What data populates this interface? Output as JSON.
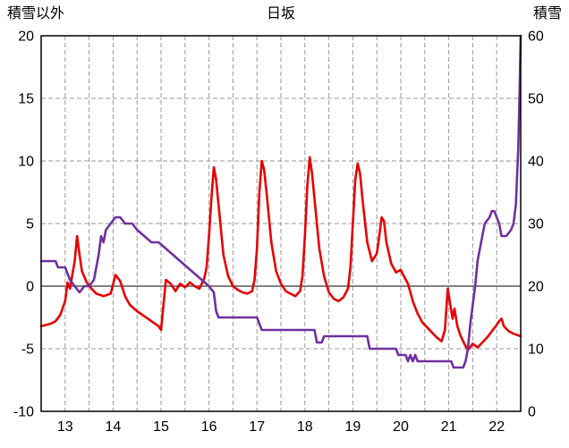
{
  "header": {
    "left_axis_title": "積雪以外",
    "chart_title": "日坂",
    "right_axis_title": "積雪"
  },
  "colors": {
    "red_series": "#e60000",
    "purple_series": "#7030a0",
    "gridline": "#999999",
    "zero_line": "#808080",
    "border": "#000000",
    "text": "#000000",
    "background": "#ffffff"
  },
  "chart_data": {
    "type": "line",
    "title": "日坂",
    "grid": true,
    "legend": "none",
    "left_axis": {
      "label": "積雪以外",
      "min": -10,
      "max": 20,
      "ticks": [
        -10,
        -5,
        0,
        5,
        10,
        15,
        20
      ]
    },
    "right_axis": {
      "label": "積雪",
      "min": 0,
      "max": 60,
      "ticks": [
        0,
        10,
        20,
        30,
        40,
        50,
        60
      ]
    },
    "x_axis": {
      "min": 12.5,
      "max": 22.5,
      "ticks": [
        13,
        14,
        15,
        16,
        17,
        18,
        19,
        20,
        21,
        22
      ],
      "grid_step": 0.5
    },
    "series": [
      {
        "id": "red",
        "name": "積雪以外",
        "axis": "left",
        "color": "#e60000",
        "points": [
          [
            12.5,
            -3.2
          ],
          [
            12.6,
            -3.1
          ],
          [
            12.7,
            -3.0
          ],
          [
            12.8,
            -2.8
          ],
          [
            12.9,
            -2.3
          ],
          [
            13.0,
            -1.2
          ],
          [
            13.05,
            0.3
          ],
          [
            13.1,
            -0.2
          ],
          [
            13.2,
            2.0
          ],
          [
            13.25,
            4.0
          ],
          [
            13.3,
            2.5
          ],
          [
            13.35,
            1.2
          ],
          [
            13.45,
            0.3
          ],
          [
            13.55,
            -0.2
          ],
          [
            13.65,
            -0.6
          ],
          [
            13.8,
            -0.8
          ],
          [
            13.95,
            -0.6
          ],
          [
            14.05,
            0.9
          ],
          [
            14.15,
            0.4
          ],
          [
            14.25,
            -0.8
          ],
          [
            14.35,
            -1.5
          ],
          [
            14.5,
            -2.0
          ],
          [
            14.65,
            -2.4
          ],
          [
            14.8,
            -2.8
          ],
          [
            14.95,
            -3.2
          ],
          [
            15.0,
            -3.5
          ],
          [
            15.05,
            -1.5
          ],
          [
            15.1,
            0.5
          ],
          [
            15.2,
            0.2
          ],
          [
            15.3,
            -0.4
          ],
          [
            15.4,
            0.2
          ],
          [
            15.5,
            -0.1
          ],
          [
            15.6,
            0.3
          ],
          [
            15.7,
            0.0
          ],
          [
            15.8,
            -0.2
          ],
          [
            15.9,
            0.6
          ],
          [
            15.95,
            1.5
          ],
          [
            16.0,
            4.0
          ],
          [
            16.05,
            7.0
          ],
          [
            16.1,
            9.5
          ],
          [
            16.15,
            8.5
          ],
          [
            16.2,
            6.5
          ],
          [
            16.3,
            2.5
          ],
          [
            16.4,
            0.8
          ],
          [
            16.5,
            0.0
          ],
          [
            16.6,
            -0.3
          ],
          [
            16.7,
            -0.5
          ],
          [
            16.8,
            -0.6
          ],
          [
            16.9,
            -0.4
          ],
          [
            16.95,
            0.5
          ],
          [
            17.0,
            3.0
          ],
          [
            17.05,
            7.5
          ],
          [
            17.1,
            10.0
          ],
          [
            17.15,
            9.3
          ],
          [
            17.2,
            7.5
          ],
          [
            17.3,
            3.5
          ],
          [
            17.4,
            1.2
          ],
          [
            17.5,
            0.2
          ],
          [
            17.6,
            -0.4
          ],
          [
            17.7,
            -0.6
          ],
          [
            17.8,
            -0.8
          ],
          [
            17.9,
            -0.4
          ],
          [
            17.95,
            0.8
          ],
          [
            18.0,
            4.0
          ],
          [
            18.05,
            8.0
          ],
          [
            18.1,
            10.3
          ],
          [
            18.15,
            9.0
          ],
          [
            18.2,
            7.0
          ],
          [
            18.3,
            3.0
          ],
          [
            18.4,
            0.8
          ],
          [
            18.5,
            -0.5
          ],
          [
            18.6,
            -1.0
          ],
          [
            18.7,
            -1.2
          ],
          [
            18.8,
            -0.9
          ],
          [
            18.9,
            -0.2
          ],
          [
            18.95,
            1.5
          ],
          [
            19.0,
            5.0
          ],
          [
            19.05,
            8.5
          ],
          [
            19.1,
            9.8
          ],
          [
            19.15,
            9.0
          ],
          [
            19.2,
            7.0
          ],
          [
            19.3,
            3.5
          ],
          [
            19.4,
            2.0
          ],
          [
            19.5,
            2.6
          ],
          [
            19.55,
            4.0
          ],
          [
            19.6,
            5.5
          ],
          [
            19.65,
            5.2
          ],
          [
            19.7,
            3.5
          ],
          [
            19.8,
            1.8
          ],
          [
            19.9,
            1.1
          ],
          [
            20.0,
            1.3
          ],
          [
            20.05,
            0.9
          ],
          [
            20.15,
            0.2
          ],
          [
            20.25,
            -1.2
          ],
          [
            20.35,
            -2.2
          ],
          [
            20.45,
            -2.9
          ],
          [
            20.55,
            -3.3
          ],
          [
            20.65,
            -3.7
          ],
          [
            20.75,
            -4.1
          ],
          [
            20.85,
            -4.4
          ],
          [
            20.92,
            -3.5
          ],
          [
            20.98,
            -0.2
          ],
          [
            21.02,
            -1.2
          ],
          [
            21.08,
            -2.6
          ],
          [
            21.12,
            -1.8
          ],
          [
            21.18,
            -3.2
          ],
          [
            21.25,
            -4.0
          ],
          [
            21.35,
            -4.8
          ],
          [
            21.4,
            -5.1
          ],
          [
            21.5,
            -4.6
          ],
          [
            21.6,
            -4.9
          ],
          [
            21.7,
            -4.5
          ],
          [
            21.8,
            -4.1
          ],
          [
            21.9,
            -3.6
          ],
          [
            22.0,
            -3.1
          ],
          [
            22.05,
            -2.8
          ],
          [
            22.1,
            -2.6
          ],
          [
            22.15,
            -3.2
          ],
          [
            22.25,
            -3.6
          ],
          [
            22.35,
            -3.8
          ],
          [
            22.5,
            -4.0
          ]
        ]
      },
      {
        "id": "purple",
        "name": "積雪",
        "axis": "right",
        "color": "#7030a0",
        "points": [
          [
            12.5,
            24
          ],
          [
            12.8,
            24
          ],
          [
            12.85,
            23
          ],
          [
            13.0,
            23
          ],
          [
            13.05,
            22
          ],
          [
            13.1,
            21
          ],
          [
            13.2,
            20
          ],
          [
            13.3,
            19
          ],
          [
            13.4,
            20
          ],
          [
            13.5,
            20
          ],
          [
            13.6,
            21
          ],
          [
            13.65,
            23
          ],
          [
            13.7,
            25
          ],
          [
            13.75,
            28
          ],
          [
            13.8,
            27
          ],
          [
            13.85,
            29
          ],
          [
            13.95,
            30
          ],
          [
            14.05,
            31
          ],
          [
            14.15,
            31
          ],
          [
            14.25,
            30
          ],
          [
            14.4,
            30
          ],
          [
            14.5,
            29
          ],
          [
            14.65,
            28
          ],
          [
            14.8,
            27
          ],
          [
            14.95,
            27
          ],
          [
            15.1,
            26
          ],
          [
            15.25,
            25
          ],
          [
            15.4,
            24
          ],
          [
            15.55,
            23
          ],
          [
            15.7,
            22
          ],
          [
            15.85,
            21
          ],
          [
            16.0,
            20
          ],
          [
            16.1,
            19
          ],
          [
            16.15,
            16
          ],
          [
            16.2,
            15
          ],
          [
            16.5,
            15
          ],
          [
            17.0,
            15
          ],
          [
            17.05,
            14
          ],
          [
            17.1,
            13
          ],
          [
            17.5,
            13
          ],
          [
            18.2,
            13
          ],
          [
            18.25,
            11
          ],
          [
            18.35,
            11
          ],
          [
            18.4,
            12
          ],
          [
            18.6,
            12
          ],
          [
            19.3,
            12
          ],
          [
            19.35,
            10
          ],
          [
            19.9,
            10
          ],
          [
            19.95,
            9
          ],
          [
            20.1,
            9
          ],
          [
            20.15,
            8
          ],
          [
            20.2,
            9
          ],
          [
            20.25,
            8
          ],
          [
            20.3,
            9
          ],
          [
            20.35,
            8
          ],
          [
            20.6,
            8
          ],
          [
            21.05,
            8
          ],
          [
            21.1,
            7
          ],
          [
            21.3,
            7
          ],
          [
            21.35,
            8
          ],
          [
            21.4,
            10
          ],
          [
            21.45,
            14
          ],
          [
            21.5,
            17
          ],
          [
            21.55,
            20
          ],
          [
            21.6,
            24
          ],
          [
            21.7,
            28
          ],
          [
            21.75,
            30
          ],
          [
            21.85,
            31
          ],
          [
            21.9,
            32
          ],
          [
            21.95,
            32
          ],
          [
            22.0,
            31
          ],
          [
            22.05,
            30
          ],
          [
            22.1,
            28
          ],
          [
            22.2,
            28
          ],
          [
            22.3,
            29
          ],
          [
            22.35,
            30
          ],
          [
            22.4,
            33
          ],
          [
            22.45,
            42
          ],
          [
            22.48,
            52
          ],
          [
            22.5,
            60
          ]
        ]
      }
    ]
  }
}
